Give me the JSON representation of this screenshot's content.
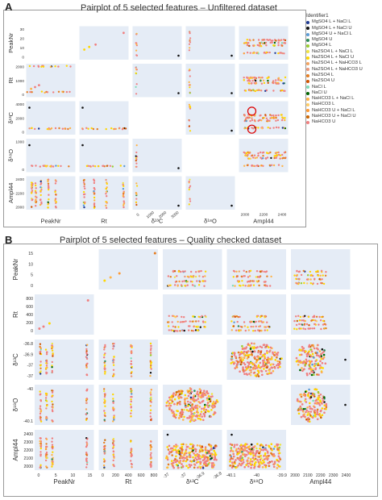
{
  "figure": {
    "panel_a_letter": "A",
    "panel_a_title": "Pairplot of 5 selected features – Unfiltered dataset",
    "panel_b_letter": "B",
    "panel_b_title": "Pairplot of 5 selected features – Quality checked dataset"
  },
  "legend": {
    "title": "Identifier1",
    "items": [
      {
        "label": "MgSO4 L + NaCl L",
        "color": "#1f3a93"
      },
      {
        "label": "MgSO4 L + NaCl U",
        "color": "#111111"
      },
      {
        "label": "MgSO4 U + NaCl L",
        "color": "#5b9bd5"
      },
      {
        "label": "MgSO4 U",
        "color": "#2e8b57"
      },
      {
        "label": "MgSO4 L",
        "color": "#9acd32"
      },
      {
        "label": "Na2SO4 L + NaCl L",
        "color": "#f0e442"
      },
      {
        "label": "Na2SO4 L + NaCl U",
        "color": "#ffd700"
      },
      {
        "label": "Na2SO4 L + NaHCO3 L",
        "color": "#f4a460"
      },
      {
        "label": "Na2SO4 L + NaHCO3 U",
        "color": "#e9967a"
      },
      {
        "label": "Na2SO4 L",
        "color": "#e67e22"
      },
      {
        "label": "Na2SO4 U",
        "color": "#d35400"
      },
      {
        "label": "NaCl L",
        "color": "#7fdbb6"
      },
      {
        "label": "NaCl U",
        "color": "#006400"
      },
      {
        "label": "NaHCO3 L + NaCl L",
        "color": "#ffb347"
      },
      {
        "label": "NaHCO3 L",
        "color": "#ffcc66"
      },
      {
        "label": "NaHCO3 U + NaCl L",
        "color": "#ff9933"
      },
      {
        "label": "NaHCO3 U + NaCl U",
        "color": "#cc6600"
      },
      {
        "label": "NaHCO3 U",
        "color": "#f08080"
      }
    ]
  },
  "chart_data": [
    {
      "type": "scatter",
      "title": "Pairplot of 5 selected features – Unfiltered dataset",
      "variables": [
        "PeakNr",
        "Rt",
        "δ¹³C",
        "δ¹⁸O",
        "Ampl44"
      ],
      "y_ticks": {
        "PeakNr": [
          "30",
          "20",
          "10",
          "0"
        ],
        "Rt": [
          "2000",
          "1000",
          "0"
        ],
        "d13C": [
          "4000",
          "2000",
          "0"
        ],
        "d18O": [
          "1000",
          "0"
        ],
        "Ampl44": [
          "2400",
          "2200",
          "2000"
        ]
      },
      "x_ticks": {
        "d13C": [
          "0",
          "1000",
          "2000",
          "3000"
        ],
        "Ampl44": [
          "2000",
          "2200",
          "2400"
        ]
      },
      "annotations": [
        "red circle outliers in Ampl44 column"
      ]
    },
    {
      "type": "scatter",
      "title": "Pairplot of 5 selected features – Quality checked dataset",
      "variables": [
        "PeakNr",
        "Rt",
        "δ¹³C",
        "δ¹⁸O",
        "Ampl44"
      ],
      "y_ticks": {
        "PeakNr": [
          "15",
          "10",
          "5",
          "0"
        ],
        "Rt": [
          "800",
          "600",
          "400",
          "200",
          "0"
        ],
        "d13C": [
          "-36.8",
          "-36.9",
          "-37",
          "-37"
        ],
        "d18O": [
          "-40",
          "-40.1"
        ],
        "Ampl44": [
          "2400",
          "2300",
          "2200",
          "2100",
          "2000"
        ]
      },
      "x_ticks": {
        "PeakNr": [
          "0",
          "5",
          "10",
          "15"
        ],
        "Rt": [
          "0",
          "200",
          "400",
          "600",
          "800"
        ],
        "d13C": [
          "-37",
          "-37",
          "-36.9",
          "-36.8"
        ],
        "d18O": [
          "-40.1",
          "-40",
          "-39.9"
        ],
        "Ampl44": [
          "2000",
          "2100",
          "2200",
          "2300",
          "2400"
        ]
      }
    }
  ]
}
